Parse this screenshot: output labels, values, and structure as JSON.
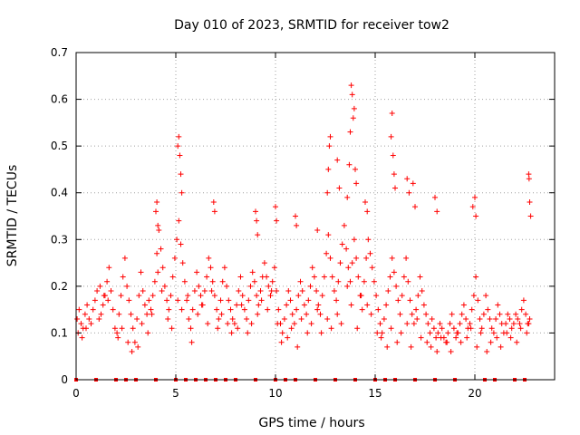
{
  "chart_data": {
    "type": "scatter",
    "title": "Day 010 of 2023, SRMTID for receiver tow2",
    "xlabel": "GPS time / hours",
    "ylabel": "SRMTID / TECUs",
    "xlim": [
      0,
      24
    ],
    "ylim": [
      0,
      0.7
    ],
    "x_ticks": [
      0,
      5,
      10,
      15,
      20
    ],
    "y_ticks": [
      0,
      0.1,
      0.2,
      0.3,
      0.4,
      0.5,
      0.6,
      0.7
    ],
    "x_tick_labels": [
      "0",
      "5",
      "10",
      "15",
      "20"
    ],
    "y_tick_labels": [
      "0",
      "0.1",
      "0.2",
      "0.3",
      "0.4",
      "0.5",
      "0.6",
      "0.7"
    ],
    "grid": true,
    "marker": "+",
    "color": "#ff0000",
    "baseline_markers_x": [
      0,
      1,
      2,
      2.5,
      3,
      4,
      5,
      5.5,
      6,
      6.5,
      7,
      7.5,
      8,
      9,
      10,
      10.5,
      11,
      12,
      13,
      14,
      15,
      15.5,
      16,
      17,
      18,
      19,
      20.5,
      21,
      22,
      22.5
    ],
    "series": [
      {
        "name": "SRMTID",
        "x": [
          0.05,
          0.15,
          0.25,
          0.35,
          0.45,
          0.55,
          0.65,
          0.75,
          0.85,
          0.95,
          1.05,
          1.15,
          1.25,
          1.35,
          1.45,
          1.55,
          1.65,
          1.75,
          1.85,
          1.95,
          2.05,
          2.15,
          2.25,
          2.35,
          2.45,
          2.55,
          2.65,
          2.75,
          2.85,
          2.95,
          3.05,
          3.15,
          3.25,
          3.35,
          3.45,
          3.55,
          3.65,
          3.75,
          3.85,
          3.95,
          4.05,
          4.15,
          4.25,
          4.35,
          4.45,
          4.55,
          4.65,
          4.75,
          4.85,
          4.95,
          5.05,
          5.15,
          5.25,
          5.35,
          5.45,
          5.55,
          5.65,
          5.75,
          5.85,
          5.95,
          6.05,
          6.15,
          6.25,
          6.35,
          6.45,
          6.55,
          6.65,
          6.75,
          6.85,
          6.95,
          7.05,
          7.15,
          7.25,
          7.35,
          7.45,
          7.55,
          7.65,
          7.75,
          7.85,
          7.95,
          8.05,
          8.15,
          8.25,
          8.35,
          8.45,
          8.55,
          8.65,
          8.75,
          8.85,
          8.95,
          9.05,
          9.15,
          9.25,
          9.35,
          9.45,
          9.55,
          9.65,
          9.75,
          9.85,
          9.95,
          10.05,
          10.15,
          10.25,
          10.35,
          10.45,
          10.55,
          10.65,
          10.75,
          10.85,
          10.95,
          11.05,
          11.15,
          11.25,
          11.35,
          11.45,
          11.55,
          11.65,
          11.75,
          11.85,
          11.95,
          12.05,
          12.15,
          12.25,
          12.35,
          12.45,
          12.55,
          12.65,
          12.75,
          12.85,
          12.95,
          13.05,
          13.15,
          13.25,
          13.35,
          13.45,
          13.55,
          13.65,
          13.75,
          13.85,
          13.95,
          14.05,
          14.15,
          14.25,
          14.35,
          14.45,
          14.55,
          14.65,
          14.75,
          14.85,
          14.95,
          15.05,
          15.15,
          15.25,
          15.35,
          15.45,
          15.55,
          15.65,
          15.75,
          15.85,
          15.95,
          16.05,
          16.15,
          16.25,
          16.35,
          16.45,
          16.55,
          16.65,
          16.75,
          16.85,
          16.95,
          17.05,
          17.15,
          17.25,
          17.35,
          17.45,
          17.55,
          17.65,
          17.75,
          17.85,
          17.95,
          18.05,
          18.15,
          18.25,
          18.35,
          18.45,
          18.55,
          18.65,
          18.75,
          18.85,
          18.95,
          19.05,
          19.15,
          19.25,
          19.35,
          19.45,
          19.55,
          19.65,
          19.75,
          19.85,
          19.95,
          20.05,
          20.15,
          20.25,
          20.35,
          20.45,
          20.55,
          20.65,
          20.75,
          20.85,
          20.95,
          21.05,
          21.15,
          21.25,
          21.35,
          21.45,
          21.55,
          21.65,
          21.75,
          21.85,
          21.95,
          22.05,
          22.15,
          22.25,
          22.35,
          22.45,
          22.55,
          22.65,
          22.75,
          0.1,
          0.3,
          0.5,
          1.2,
          1.4,
          1.6,
          2.1,
          2.3,
          2.6,
          2.8,
          3.1,
          3.3,
          3.6,
          3.8,
          4.1,
          4.3,
          4.6,
          4.8,
          5.1,
          5.3,
          5.6,
          5.8,
          6.1,
          6.3,
          6.6,
          6.8,
          7.1,
          7.3,
          7.6,
          7.8,
          8.1,
          8.3,
          8.6,
          8.8,
          9.1,
          9.3,
          9.6,
          9.8,
          10.1,
          10.3,
          10.6,
          10.8,
          11.1,
          11.3,
          11.6,
          11.8,
          12.1,
          12.3,
          12.6,
          12.8,
          13.1,
          13.3,
          13.6,
          13.8,
          14.1,
          14.3,
          14.6,
          14.8,
          15.1,
          15.3,
          15.6,
          15.8,
          16.1,
          16.3,
          16.6,
          16.8,
          17.1,
          17.3,
          17.6,
          17.8,
          18.1,
          18.3,
          18.6,
          18.8,
          19.1,
          19.3,
          19.6,
          19.8,
          20.1,
          20.3,
          20.6,
          20.8,
          21.1,
          21.3,
          21.6,
          21.8,
          22.1,
          22.3,
          22.6,
          22.7,
          4.0,
          4.05,
          4.1,
          5.1,
          5.15,
          5.2,
          5.25,
          5.3,
          6.9,
          6.95,
          9.0,
          9.05,
          9.1,
          10.0,
          10.05,
          11.0,
          11.05,
          12.1,
          12.6,
          12.65,
          12.7,
          12.75,
          13.1,
          13.2,
          13.6,
          13.7,
          13.75,
          13.8,
          13.85,
          13.9,
          13.95,
          14.0,
          14.05,
          14.5,
          14.6,
          15.8,
          15.85,
          15.9,
          15.95,
          16.0,
          16.6,
          16.7,
          16.9,
          17.0,
          18.0,
          18.1,
          19.9,
          20.0,
          20.05,
          22.7,
          22.72,
          22.75,
          22.8
        ],
        "y": [
          0.13,
          0.15,
          0.12,
          0.11,
          0.14,
          0.16,
          0.13,
          0.12,
          0.15,
          0.17,
          0.19,
          0.13,
          0.14,
          0.16,
          0.18,
          0.21,
          0.24,
          0.19,
          0.15,
          0.11,
          0.1,
          0.14,
          0.18,
          0.22,
          0.26,
          0.2,
          0.17,
          0.14,
          0.11,
          0.08,
          0.13,
          0.18,
          0.23,
          0.19,
          0.16,
          0.14,
          0.17,
          0.15,
          0.18,
          0.21,
          0.27,
          0.32,
          0.28,
          0.24,
          0.2,
          0.17,
          0.15,
          0.18,
          0.22,
          0.26,
          0.3,
          0.34,
          0.29,
          0.25,
          0.21,
          0.17,
          0.13,
          0.11,
          0.15,
          0.19,
          0.23,
          0.2,
          0.18,
          0.16,
          0.19,
          0.22,
          0.26,
          0.24,
          0.21,
          0.18,
          0.15,
          0.13,
          0.17,
          0.21,
          0.24,
          0.2,
          0.17,
          0.15,
          0.13,
          0.12,
          0.16,
          0.19,
          0.22,
          0.18,
          0.15,
          0.13,
          0.17,
          0.2,
          0.23,
          0.21,
          0.18,
          0.16,
          0.19,
          0.22,
          0.25,
          0.22,
          0.2,
          0.18,
          0.21,
          0.24,
          0.19,
          0.15,
          0.12,
          0.1,
          0.13,
          0.16,
          0.19,
          0.17,
          0.14,
          0.12,
          0.15,
          0.18,
          0.21,
          0.19,
          0.16,
          0.14,
          0.17,
          0.2,
          0.24,
          0.22,
          0.19,
          0.16,
          0.14,
          0.18,
          0.22,
          0.27,
          0.31,
          0.26,
          0.22,
          0.19,
          0.17,
          0.21,
          0.25,
          0.29,
          0.33,
          0.28,
          0.24,
          0.21,
          0.25,
          0.3,
          0.26,
          0.22,
          0.18,
          0.15,
          0.21,
          0.26,
          0.3,
          0.27,
          0.24,
          0.21,
          0.18,
          0.15,
          0.12,
          0.1,
          0.13,
          0.16,
          0.19,
          0.22,
          0.26,
          0.23,
          0.2,
          0.17,
          0.14,
          0.18,
          0.22,
          0.26,
          0.21,
          0.17,
          0.14,
          0.12,
          0.15,
          0.18,
          0.22,
          0.19,
          0.16,
          0.14,
          0.12,
          0.1,
          0.13,
          0.11,
          0.09,
          0.1,
          0.12,
          0.11,
          0.09,
          0.08,
          0.1,
          0.12,
          0.14,
          0.11,
          0.09,
          0.1,
          0.12,
          0.14,
          0.16,
          0.13,
          0.11,
          0.12,
          0.15,
          0.18,
          0.22,
          0.17,
          0.13,
          0.11,
          0.14,
          0.18,
          0.15,
          0.13,
          0.11,
          0.1,
          0.13,
          0.16,
          0.14,
          0.12,
          0.1,
          0.12,
          0.14,
          0.13,
          0.11,
          0.12,
          0.14,
          0.13,
          0.12,
          0.15,
          0.17,
          0.14,
          0.12,
          0.13,
          0.1,
          0.09,
          0.11,
          0.2,
          0.18,
          0.17,
          0.09,
          0.11,
          0.08,
          0.06,
          0.07,
          0.12,
          0.1,
          0.14,
          0.23,
          0.19,
          0.13,
          0.11,
          0.17,
          0.15,
          0.18,
          0.08,
          0.14,
          0.16,
          0.12,
          0.19,
          0.11,
          0.14,
          0.12,
          0.1,
          0.11,
          0.16,
          0.1,
          0.12,
          0.14,
          0.17,
          0.15,
          0.19,
          0.12,
          0.08,
          0.09,
          0.11,
          0.07,
          0.13,
          0.1,
          0.12,
          0.15,
          0.1,
          0.13,
          0.11,
          0.14,
          0.12,
          0.2,
          0.16,
          0.11,
          0.18,
          0.16,
          0.14,
          0.1,
          0.09,
          0.07,
          0.11,
          0.08,
          0.1,
          0.12,
          0.07,
          0.13,
          0.09,
          0.08,
          0.07,
          0.06,
          0.09,
          0.08,
          0.06,
          0.1,
          0.08,
          0.09,
          0.11,
          0.07,
          0.1,
          0.06,
          0.08,
          0.09,
          0.07,
          0.1,
          0.09,
          0.08,
          0.11,
          0.1,
          0.12,
          0.36,
          0.38,
          0.33,
          0.5,
          0.52,
          0.48,
          0.44,
          0.4,
          0.38,
          0.36,
          0.36,
          0.34,
          0.31,
          0.37,
          0.34,
          0.35,
          0.33,
          0.32,
          0.4,
          0.45,
          0.5,
          0.52,
          0.47,
          0.41,
          0.39,
          0.46,
          0.53,
          0.63,
          0.61,
          0.56,
          0.58,
          0.45,
          0.42,
          0.38,
          0.36,
          0.52,
          0.57,
          0.48,
          0.44,
          0.41,
          0.43,
          0.4,
          0.42,
          0.37,
          0.39,
          0.36,
          0.37,
          0.39,
          0.35,
          0.44,
          0.43,
          0.38,
          0.35
        ]
      }
    ]
  }
}
